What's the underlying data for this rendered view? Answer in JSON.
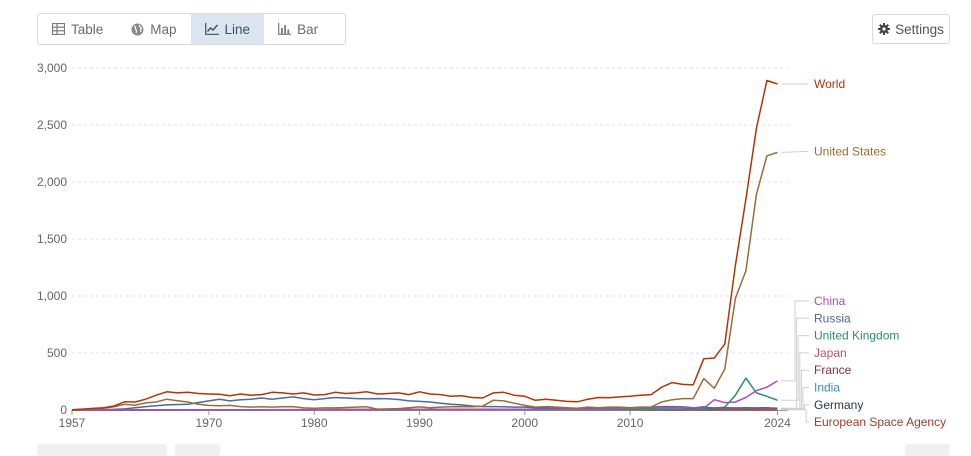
{
  "toolbar": {
    "tabs": [
      {
        "label": "Table",
        "icon": "table-icon"
      },
      {
        "label": "Map",
        "icon": "globe-icon"
      },
      {
        "label": "Line",
        "icon": "line-chart-icon",
        "active": true
      },
      {
        "label": "Bar",
        "icon": "bar-chart-icon"
      }
    ],
    "settings_label": "Settings",
    "settings_icon": "gear-icon"
  },
  "chart_data": {
    "type": "line",
    "title": "",
    "xlabel": "",
    "ylabel": "",
    "xlim": [
      1957,
      2025
    ],
    "ylim": [
      0,
      3000
    ],
    "y_ticks": [
      0,
      500,
      1000,
      1500,
      2000,
      2500,
      3000
    ],
    "y_tick_labels": [
      "0",
      "500",
      "1,000",
      "1,500",
      "2,000",
      "2,500",
      "3,000"
    ],
    "x_ticks": [
      1957,
      1970,
      1980,
      1990,
      2000,
      2010,
      2024
    ],
    "x_tick_labels": [
      "1957",
      "1970",
      "1980",
      "1990",
      "2000",
      "2010",
      "2024"
    ],
    "grid": true,
    "legend": "right (end labels)",
    "series": [
      {
        "name": "World",
        "color": "#b13507",
        "points": [
          [
            1957,
            2
          ],
          [
            1958,
            8
          ],
          [
            1959,
            14
          ],
          [
            1960,
            20
          ],
          [
            1961,
            35
          ],
          [
            1962,
            72
          ],
          [
            1963,
            70
          ],
          [
            1964,
            95
          ],
          [
            1965,
            130
          ],
          [
            1966,
            160
          ],
          [
            1967,
            150
          ],
          [
            1968,
            155
          ],
          [
            1969,
            145
          ],
          [
            1970,
            140
          ],
          [
            1971,
            138
          ],
          [
            1972,
            125
          ],
          [
            1973,
            140
          ],
          [
            1974,
            130
          ],
          [
            1975,
            135
          ],
          [
            1976,
            155
          ],
          [
            1977,
            150
          ],
          [
            1978,
            140
          ],
          [
            1979,
            150
          ],
          [
            1980,
            132
          ],
          [
            1981,
            135
          ],
          [
            1982,
            155
          ],
          [
            1983,
            145
          ],
          [
            1984,
            150
          ],
          [
            1985,
            160
          ],
          [
            1986,
            140
          ],
          [
            1987,
            145
          ],
          [
            1988,
            150
          ],
          [
            1989,
            135
          ],
          [
            1990,
            160
          ],
          [
            1991,
            140
          ],
          [
            1992,
            135
          ],
          [
            1993,
            120
          ],
          [
            1994,
            125
          ],
          [
            1995,
            110
          ],
          [
            1996,
            105
          ],
          [
            1997,
            150
          ],
          [
            1998,
            155
          ],
          [
            1999,
            130
          ],
          [
            2000,
            120
          ],
          [
            2001,
            85
          ],
          [
            2002,
            95
          ],
          [
            2003,
            85
          ],
          [
            2004,
            75
          ],
          [
            2005,
            72
          ],
          [
            2006,
            95
          ],
          [
            2007,
            110
          ],
          [
            2008,
            108
          ],
          [
            2009,
            115
          ],
          [
            2010,
            120
          ],
          [
            2011,
            130
          ],
          [
            2012,
            135
          ],
          [
            2013,
            200
          ],
          [
            2014,
            240
          ],
          [
            2015,
            225
          ],
          [
            2016,
            220
          ],
          [
            2017,
            450
          ],
          [
            2018,
            455
          ],
          [
            2019,
            580
          ],
          [
            2020,
            1270
          ],
          [
            2021,
            1850
          ],
          [
            2022,
            2470
          ],
          [
            2023,
            2890
          ],
          [
            2024,
            2860
          ]
        ]
      },
      {
        "name": "United States",
        "color": "#996d39",
        "points": [
          [
            1957,
            0
          ],
          [
            1958,
            6
          ],
          [
            1959,
            10
          ],
          [
            1960,
            16
          ],
          [
            1961,
            28
          ],
          [
            1962,
            50
          ],
          [
            1963,
            42
          ],
          [
            1964,
            62
          ],
          [
            1965,
            70
          ],
          [
            1966,
            95
          ],
          [
            1967,
            82
          ],
          [
            1968,
            70
          ],
          [
            1969,
            50
          ],
          [
            1970,
            40
          ],
          [
            1971,
            38
          ],
          [
            1972,
            40
          ],
          [
            1973,
            30
          ],
          [
            1974,
            25
          ],
          [
            1975,
            28
          ],
          [
            1976,
            25
          ],
          [
            1977,
            28
          ],
          [
            1978,
            30
          ],
          [
            1979,
            18
          ],
          [
            1980,
            15
          ],
          [
            1981,
            18
          ],
          [
            1982,
            18
          ],
          [
            1983,
            22
          ],
          [
            1984,
            25
          ],
          [
            1985,
            28
          ],
          [
            1986,
            8
          ],
          [
            1987,
            10
          ],
          [
            1988,
            12
          ],
          [
            1989,
            20
          ],
          [
            1990,
            27
          ],
          [
            1991,
            20
          ],
          [
            1992,
            25
          ],
          [
            1993,
            28
          ],
          [
            1994,
            30
          ],
          [
            1995,
            28
          ],
          [
            1996,
            33
          ],
          [
            1997,
            85
          ],
          [
            1998,
            80
          ],
          [
            1999,
            60
          ],
          [
            2000,
            40
          ],
          [
            2001,
            25
          ],
          [
            2002,
            30
          ],
          [
            2003,
            25
          ],
          [
            2004,
            20
          ],
          [
            2005,
            15
          ],
          [
            2006,
            25
          ],
          [
            2007,
            20
          ],
          [
            2008,
            25
          ],
          [
            2009,
            25
          ],
          [
            2010,
            20
          ],
          [
            2011,
            22
          ],
          [
            2012,
            25
          ],
          [
            2013,
            70
          ],
          [
            2014,
            90
          ],
          [
            2015,
            100
          ],
          [
            2016,
            100
          ],
          [
            2017,
            275
          ],
          [
            2018,
            190
          ],
          [
            2019,
            360
          ],
          [
            2020,
            980
          ],
          [
            2021,
            1220
          ],
          [
            2022,
            1890
          ],
          [
            2023,
            2230
          ],
          [
            2024,
            2260
          ]
        ]
      },
      {
        "name": "China",
        "color": "#a652ba",
        "points": [
          [
            1957,
            0
          ],
          [
            1970,
            1
          ],
          [
            1975,
            3
          ],
          [
            1980,
            2
          ],
          [
            1985,
            3
          ],
          [
            1990,
            5
          ],
          [
            1995,
            3
          ],
          [
            2000,
            5
          ],
          [
            2005,
            6
          ],
          [
            2008,
            10
          ],
          [
            2010,
            15
          ],
          [
            2012,
            20
          ],
          [
            2014,
            22
          ],
          [
            2015,
            25
          ],
          [
            2016,
            20
          ],
          [
            2017,
            15
          ],
          [
            2018,
            90
          ],
          [
            2019,
            65
          ],
          [
            2020,
            70
          ],
          [
            2021,
            110
          ],
          [
            2022,
            170
          ],
          [
            2023,
            200
          ],
          [
            2024,
            255
          ]
        ]
      },
      {
        "name": "Russia",
        "color": "#4c6a9c",
        "points": [
          [
            1957,
            0
          ],
          [
            1958,
            1
          ],
          [
            1960,
            3
          ],
          [
            1962,
            10
          ],
          [
            1964,
            30
          ],
          [
            1966,
            45
          ],
          [
            1968,
            50
          ],
          [
            1970,
            80
          ],
          [
            1971,
            95
          ],
          [
            1972,
            80
          ],
          [
            1973,
            90
          ],
          [
            1974,
            95
          ],
          [
            1975,
            105
          ],
          [
            1976,
            95
          ],
          [
            1977,
            105
          ],
          [
            1978,
            115
          ],
          [
            1979,
            100
          ],
          [
            1980,
            90
          ],
          [
            1981,
            100
          ],
          [
            1982,
            110
          ],
          [
            1983,
            105
          ],
          [
            1984,
            100
          ],
          [
            1985,
            98
          ],
          [
            1986,
            100
          ],
          [
            1987,
            98
          ],
          [
            1988,
            92
          ],
          [
            1989,
            80
          ],
          [
            1990,
            75
          ],
          [
            1991,
            70
          ],
          [
            1992,
            60
          ],
          [
            1993,
            50
          ],
          [
            1994,
            45
          ],
          [
            1995,
            35
          ],
          [
            1996,
            30
          ],
          [
            1997,
            30
          ],
          [
            1998,
            28
          ],
          [
            1999,
            25
          ],
          [
            2000,
            25
          ],
          [
            2001,
            20
          ],
          [
            2002,
            18
          ],
          [
            2003,
            15
          ],
          [
            2004,
            15
          ],
          [
            2005,
            15
          ],
          [
            2006,
            20
          ],
          [
            2007,
            18
          ],
          [
            2008,
            20
          ],
          [
            2009,
            22
          ],
          [
            2010,
            20
          ],
          [
            2011,
            25
          ],
          [
            2012,
            25
          ],
          [
            2013,
            30
          ],
          [
            2014,
            30
          ],
          [
            2015,
            28
          ],
          [
            2016,
            20
          ],
          [
            2017,
            20
          ],
          [
            2018,
            18
          ],
          [
            2019,
            20
          ],
          [
            2020,
            18
          ],
          [
            2021,
            20
          ],
          [
            2022,
            18
          ],
          [
            2023,
            20
          ],
          [
            2024,
            15
          ]
        ]
      },
      {
        "name": "United Kingdom",
        "color": "#2d8e6f",
        "points": [
          [
            1957,
            0
          ],
          [
            1962,
            1
          ],
          [
            1965,
            2
          ],
          [
            1970,
            1
          ],
          [
            1980,
            2
          ],
          [
            1990,
            2
          ],
          [
            2000,
            3
          ],
          [
            2005,
            3
          ],
          [
            2010,
            5
          ],
          [
            2013,
            8
          ],
          [
            2015,
            10
          ],
          [
            2017,
            8
          ],
          [
            2018,
            15
          ],
          [
            2019,
            25
          ],
          [
            2020,
            130
          ],
          [
            2021,
            280
          ],
          [
            2022,
            150
          ],
          [
            2023,
            120
          ],
          [
            2024,
            85
          ]
        ]
      },
      {
        "name": "Japan",
        "color": "#c15065",
        "points": [
          [
            1957,
            0
          ],
          [
            1970,
            2
          ],
          [
            1975,
            3
          ],
          [
            1980,
            4
          ],
          [
            1985,
            5
          ],
          [
            1990,
            6
          ],
          [
            1995,
            5
          ],
          [
            2000,
            4
          ],
          [
            2005,
            5
          ],
          [
            2010,
            5
          ],
          [
            2015,
            8
          ],
          [
            2018,
            10
          ],
          [
            2020,
            10
          ],
          [
            2022,
            10
          ],
          [
            2024,
            8
          ]
        ]
      },
      {
        "name": "France",
        "color": "#883039",
        "points": [
          [
            1957,
            0
          ],
          [
            1965,
            2
          ],
          [
            1970,
            3
          ],
          [
            1980,
            3
          ],
          [
            1990,
            5
          ],
          [
            2000,
            5
          ],
          [
            2010,
            6
          ],
          [
            2015,
            6
          ],
          [
            2020,
            8
          ],
          [
            2022,
            8
          ],
          [
            2024,
            6
          ]
        ]
      },
      {
        "name": "India",
        "color": "#3e8fb5",
        "points": [
          [
            1957,
            0
          ],
          [
            1980,
            1
          ],
          [
            1990,
            2
          ],
          [
            2000,
            3
          ],
          [
            2010,
            5
          ],
          [
            2015,
            8
          ],
          [
            2017,
            30
          ],
          [
            2018,
            10
          ],
          [
            2020,
            8
          ],
          [
            2022,
            15
          ],
          [
            2023,
            10
          ],
          [
            2024,
            12
          ]
        ]
      },
      {
        "name": "Germany",
        "color": "#28354f",
        "points": [
          [
            1957,
            0
          ],
          [
            1970,
            2
          ],
          [
            1980,
            3
          ],
          [
            1990,
            4
          ],
          [
            2000,
            5
          ],
          [
            2010,
            5
          ],
          [
            2020,
            6
          ],
          [
            2024,
            5
          ]
        ]
      },
      {
        "name": "European Space Agency",
        "color": "#9b3d2e",
        "points": [
          [
            1957,
            0
          ],
          [
            1980,
            1
          ],
          [
            1990,
            2
          ],
          [
            2000,
            2
          ],
          [
            2010,
            3
          ],
          [
            2020,
            3
          ],
          [
            2024,
            2
          ]
        ]
      }
    ]
  }
}
